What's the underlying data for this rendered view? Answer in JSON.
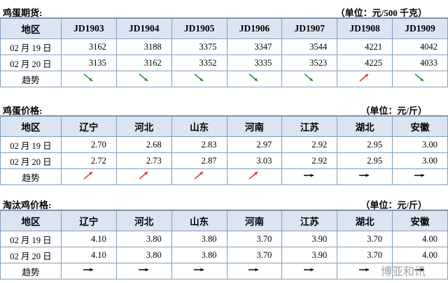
{
  "sections": [
    {
      "title": "鸡蛋期货:",
      "unit": "（单位：元/500 千克）",
      "header": [
        "地区",
        "JD1903",
        "JD1904",
        "JD1905",
        "JD1906",
        "JD1907",
        "JD1908",
        "JD1909"
      ],
      "rows": [
        [
          "02 月 19 日",
          "3162",
          "3188",
          "3375",
          "3347",
          "3544",
          "4221",
          "4042"
        ],
        [
          "02 月 20 日",
          "3135",
          "3162",
          "3352",
          "3335",
          "3523",
          "4225",
          "4033"
        ]
      ],
      "trend_label": "趋势"
    },
    {
      "title": "鸡蛋价格:",
      "unit": "（单位：元/斤）",
      "header": [
        "地区",
        "辽宁",
        "河北",
        "山东",
        "河南",
        "江苏",
        "湖北",
        "安徽"
      ],
      "rows": [
        [
          "02 月 19 日",
          "2.70",
          "2.68",
          "2.83",
          "2.97",
          "2.92",
          "2.95",
          "3.00"
        ],
        [
          "02 月 20 日",
          "2.72",
          "2.73",
          "2.87",
          "3.03",
          "2.92",
          "2.95",
          "3.00"
        ]
      ],
      "trend_label": "趋势"
    },
    {
      "title": "淘汰鸡价格:",
      "unit": "（单位：元/斤）",
      "header": [
        "地区",
        "辽宁",
        "河北",
        "山东",
        "河南",
        "江苏",
        "湖北",
        "安徽"
      ],
      "rows": [
        [
          "02 月 19 日",
          "4.10",
          "3.80",
          "3.80",
          "3.70",
          "3.90",
          "3.70",
          "4.00"
        ],
        [
          "02 月 20 日",
          "4.10",
          "3.80",
          "3.80",
          "3.70",
          "3.90",
          "3.70",
          "4.00"
        ]
      ],
      "trend_label": "趋势"
    }
  ],
  "watermark": "博亚和讯"
}
